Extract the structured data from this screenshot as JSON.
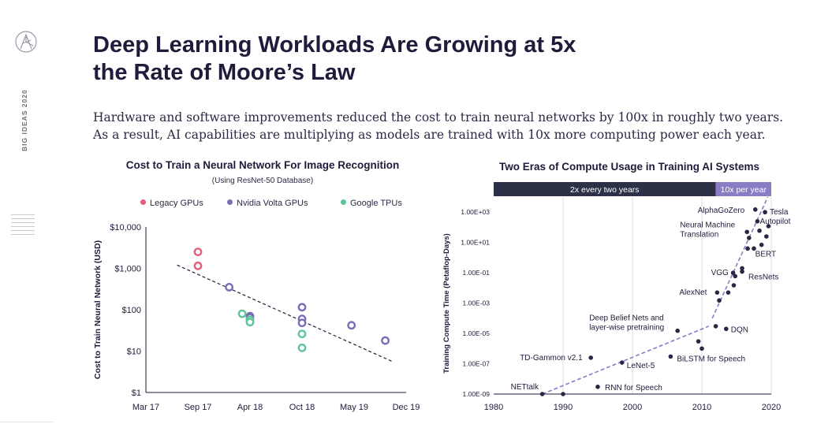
{
  "header": {
    "title_line1": "Deep Learning Workloads Are Growing at 5x",
    "title_line2": "the Rate of Moore’s Law",
    "subtitle_line1": "Hardware and software improvements reduced the cost to train neural networks by 100x in roughly two years.",
    "subtitle_line2": "As a result, AI capabilities are multiplying as models are trained with 10x more computing power each year."
  },
  "sidebar": {
    "label": "BIG IDEAS 2020",
    "logo_icon": "ark-logo-icon"
  },
  "chart_data": [
    {
      "type": "scatter",
      "title": "Cost to Train a Neural Network For Image Recognition",
      "subtitle": "(Using ResNet-50 Database)",
      "ylabel": "Cost to Train Neural Network (USD)",
      "xlabel": "",
      "y_scale": "log",
      "ylim": [
        1,
        10000
      ],
      "yticks": [
        "$1",
        "$10",
        "$100",
        "$1,000",
        "$10,000"
      ],
      "xticks": [
        "Mar 17",
        "Sep 17",
        "Apr 18",
        "Oct 18",
        "May 19",
        "Dec 19"
      ],
      "legend_position": "top",
      "trendline": {
        "style": "dashed",
        "from": {
          "x": 0.6,
          "y": 1200
        },
        "to": {
          "x": 4.75,
          "y": 5.5
        }
      },
      "series": [
        {
          "name": "Legacy GPUs",
          "color": "#e0607e",
          "points": [
            {
              "x": 1.0,
              "y": 2500
            },
            {
              "x": 1.0,
              "y": 1150
            }
          ]
        },
        {
          "name": "Nvidia Volta GPUs",
          "color": "#7b6db5",
          "points": [
            {
              "x": 1.6,
              "y": 350
            },
            {
              "x": 2.0,
              "y": 70
            },
            {
              "x": 2.0,
              "y": 65
            },
            {
              "x": 3.0,
              "y": 115
            },
            {
              "x": 3.0,
              "y": 60
            },
            {
              "x": 3.0,
              "y": 48
            },
            {
              "x": 3.95,
              "y": 42
            },
            {
              "x": 4.6,
              "y": 18
            }
          ]
        },
        {
          "name": "Google TPUs",
          "color": "#5dc597",
          "points": [
            {
              "x": 1.85,
              "y": 80
            },
            {
              "x": 2.0,
              "y": 57
            },
            {
              "x": 2.0,
              "y": 50
            },
            {
              "x": 3.0,
              "y": 26
            },
            {
              "x": 3.0,
              "y": 12
            }
          ]
        }
      ]
    },
    {
      "type": "scatter",
      "title": "Two Eras of Compute Usage in Training AI Systems",
      "ylabel": "Training Compute Time (Petaflop-Days)",
      "xlabel": "",
      "y_scale": "log",
      "ylim": [
        1e-09,
        10000
      ],
      "xlim": [
        1980,
        2020
      ],
      "yticks": [
        "1.00E-09",
        "1.00E-07",
        "1.00E-05",
        "1.00E-03",
        "1.00E-01",
        "1.00E+01",
        "1.00E+03"
      ],
      "xticks": [
        "1980",
        "1990",
        "2000",
        "2010",
        "2020"
      ],
      "eras": [
        {
          "label": "2x every two years",
          "from": 1980,
          "to": 2012,
          "color": "#2d3148"
        },
        {
          "label": "10x per year",
          "from": 2012,
          "to": 2020,
          "color": "#8a7cc4"
        }
      ],
      "trendlines": [
        {
          "style": "dashed",
          "color": "#8a7cc4",
          "from": {
            "x": 1987,
            "y": 1e-09
          },
          "to": {
            "x": 2011,
            "y": 3e-05
          }
        },
        {
          "style": "dashed",
          "color": "#8a7cc4",
          "from": {
            "x": 2011.5,
            "y": 0.0001
          },
          "to": {
            "x": 2019.5,
            "y": 10000
          }
        }
      ],
      "points": [
        {
          "x": 1987,
          "y": 1e-09,
          "label": "NETtalk"
        },
        {
          "x": 1990,
          "y": 1e-09,
          "label": ""
        },
        {
          "x": 1994,
          "y": 2.5e-07,
          "label": "TD-Gammon v2.1"
        },
        {
          "x": 1995,
          "y": 3e-09,
          "label": "RNN for Speech"
        },
        {
          "x": 1998.5,
          "y": 1.2e-07,
          "label": "LeNet-5"
        },
        {
          "x": 2005.5,
          "y": 3e-07,
          "label": "BiLSTM for Speech"
        },
        {
          "x": 2006.5,
          "y": 1.5e-05,
          "label": "Deep Belief Nets and layer-wise pretraining"
        },
        {
          "x": 2009.5,
          "y": 3e-06,
          "label": ""
        },
        {
          "x": 2010,
          "y": 1e-06,
          "label": ""
        },
        {
          "x": 2012,
          "y": 3e-05,
          "label": ""
        },
        {
          "x": 2013.5,
          "y": 2e-05,
          "label": "DQN"
        },
        {
          "x": 2012.2,
          "y": 0.005,
          "label": "AlexNet"
        },
        {
          "x": 2012.5,
          "y": 0.0015,
          "label": ""
        },
        {
          "x": 2013.8,
          "y": 0.005,
          "label": ""
        },
        {
          "x": 2014.5,
          "y": 0.1,
          "label": "VGG"
        },
        {
          "x": 2014.6,
          "y": 0.015,
          "label": ""
        },
        {
          "x": 2014.8,
          "y": 0.06,
          "label": ""
        },
        {
          "x": 2015.8,
          "y": 0.2,
          "label": "ResNets"
        },
        {
          "x": 2015.8,
          "y": 0.12,
          "label": ""
        },
        {
          "x": 2016.5,
          "y": 50,
          "label": "Neural Machine Translation"
        },
        {
          "x": 2016.6,
          "y": 4,
          "label": ""
        },
        {
          "x": 2016.8,
          "y": 20,
          "label": ""
        },
        {
          "x": 2017.5,
          "y": 4,
          "label": ""
        },
        {
          "x": 2017.7,
          "y": 1500,
          "label": "AlphaGoZero"
        },
        {
          "x": 2018,
          "y": 250,
          "label": ""
        },
        {
          "x": 2018.3,
          "y": 60,
          "label": ""
        },
        {
          "x": 2018.6,
          "y": 7,
          "label": "BERT"
        },
        {
          "x": 2019.1,
          "y": 1000,
          "label": "Tesla"
        },
        {
          "x": 2019.3,
          "y": 25,
          "label": ""
        },
        {
          "x": 2019.6,
          "y": 120,
          "label": "Autopilot"
        }
      ]
    }
  ]
}
